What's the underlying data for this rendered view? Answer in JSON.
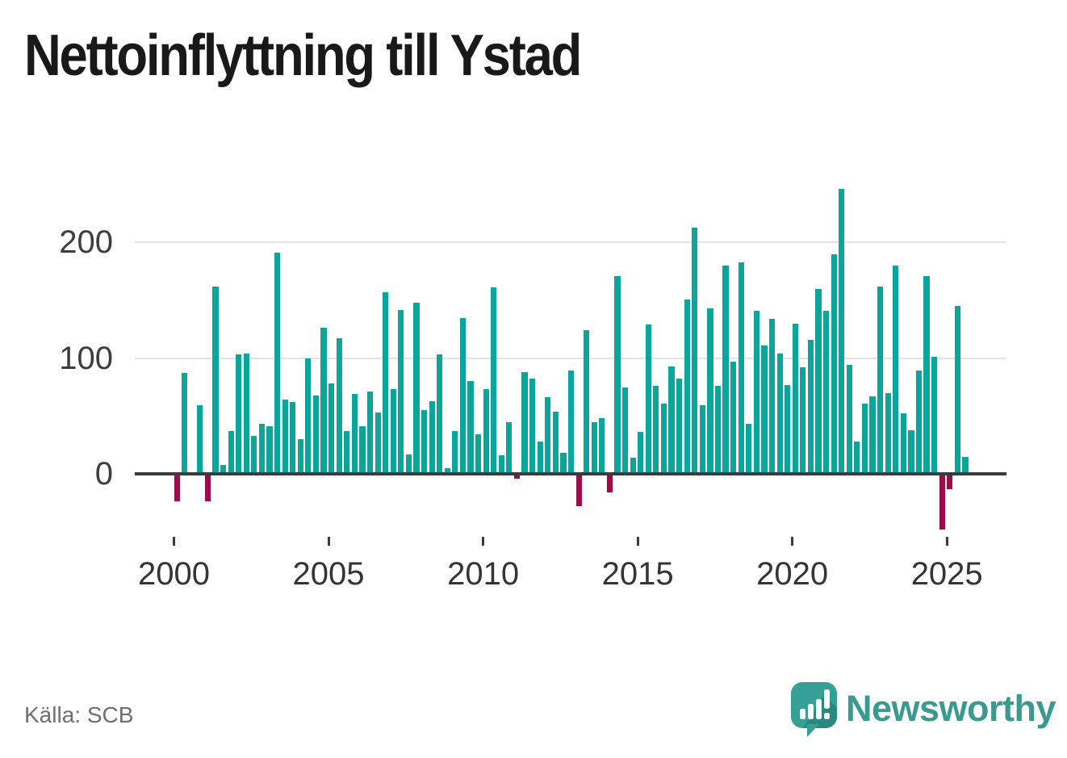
{
  "title": "Nettoinflyttning till Ystad",
  "source": "Källa: SCB",
  "brand": {
    "name": "Newsworthy",
    "wordmark_color": "#3b9a8f",
    "icon_color": "#35a095"
  },
  "colors": {
    "positive_bar": "#0aa69c",
    "negative_bar": "#9b0c48",
    "gridline": "#e3e3e3",
    "zero_axis": "#3b3b3b",
    "title_text": "#191919",
    "axis_text": "#3d3d3d",
    "source_text": "#6f6f6f"
  },
  "chart_data": {
    "type": "bar",
    "title": "Nettoinflyttning till Ystad",
    "xlabel": "",
    "ylabel": "",
    "frequency": "quarterly",
    "start_period": "2000 Q1",
    "end_period": "2025 Q3",
    "start_year": 2000,
    "values": [
      -24,
      87,
      0,
      59,
      -24,
      162,
      8,
      37,
      103,
      104,
      33,
      43,
      41,
      191,
      64,
      62,
      30,
      100,
      68,
      126,
      78,
      117,
      37,
      69,
      41,
      71,
      53,
      157,
      73,
      142,
      17,
      148,
      55,
      63,
      103,
      5,
      37,
      135,
      80,
      34,
      73,
      161,
      16,
      45,
      -4,
      88,
      82,
      28,
      66,
      54,
      18,
      89,
      -28,
      124,
      45,
      48,
      -16,
      171,
      75,
      14,
      36,
      129,
      76,
      61,
      93,
      82,
      151,
      213,
      59,
      143,
      76,
      180,
      97,
      183,
      43,
      141,
      111,
      134,
      104,
      77,
      130,
      92,
      116,
      160,
      141,
      190,
      246,
      94,
      28,
      61,
      67,
      162,
      70,
      180,
      52,
      38,
      89,
      171,
      101,
      -48,
      -13,
      145,
      15
    ],
    "x_tick_labels": [
      "2000",
      "2005",
      "2010",
      "2015",
      "2020",
      "2025"
    ],
    "x_tick_quarter_index": [
      0,
      20,
      40,
      60,
      80,
      100
    ],
    "y_tick_labels": [
      "0",
      "100",
      "200"
    ],
    "y_ticks": [
      0,
      100,
      200
    ],
    "ylim": [
      -60,
      260
    ],
    "grid": "horizontal",
    "legend": "none",
    "positive_color": "#0aa69c",
    "negative_color": "#9b0c48"
  }
}
